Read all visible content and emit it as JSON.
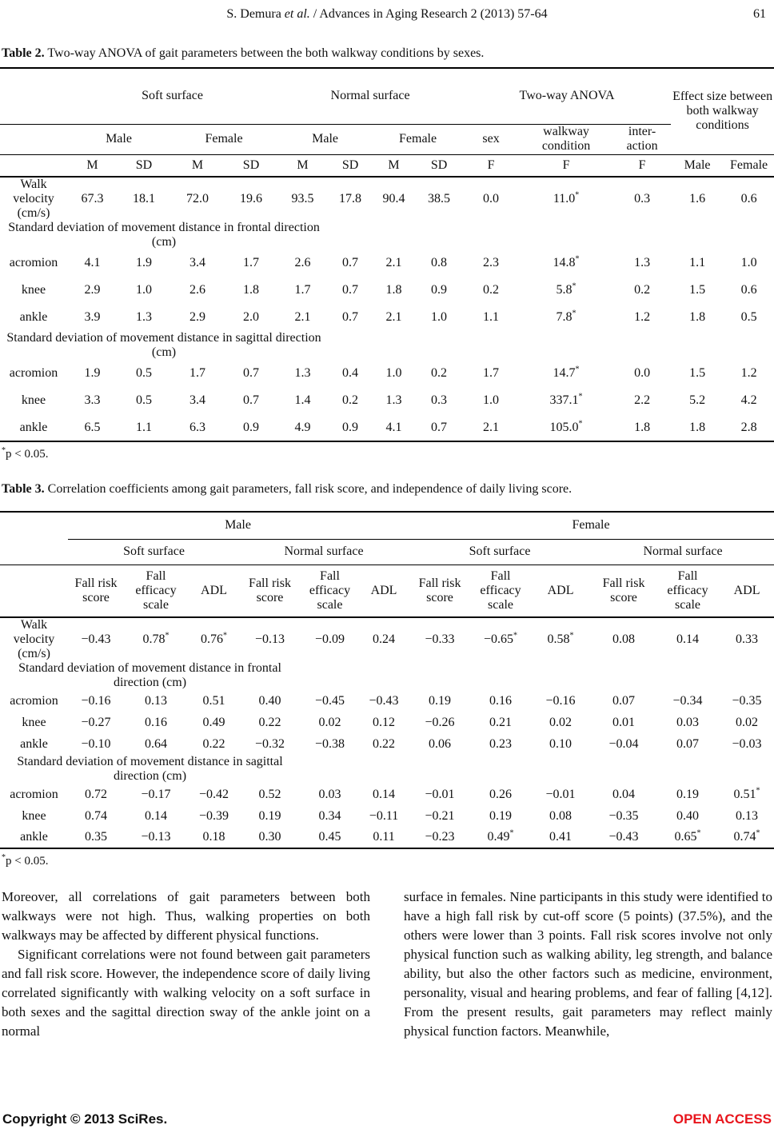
{
  "colors": {
    "open_access": "#e8151c",
    "text": "#111111"
  },
  "running_head": {
    "pre": "S. Demura ",
    "italic": "et al.",
    "post": " / Advances in Aging Research 2 (2013) 57-64",
    "page_number": "61"
  },
  "table2": {
    "caption_label": "Table 2.",
    "caption_text": "Two-way ANOVA of gait parameters between the both walkway conditions by sexes.",
    "groups": {
      "soft": "Soft surface",
      "normal": "Normal surface",
      "anova": "Two-way ANOVA",
      "effect": "Effect size between both walkway conditions"
    },
    "subheads": {
      "soft_male": "Male",
      "soft_female": "Female",
      "normal_male": "Male",
      "normal_female": "Female",
      "sex": "sex",
      "walkway": "walkway condition",
      "interaction": "inter-action"
    },
    "colheads": [
      "M",
      "SD",
      "M",
      "SD",
      "M",
      "SD",
      "M",
      "SD",
      "F",
      "F",
      "F",
      "Male",
      "Female"
    ],
    "rows": [
      {
        "label": "Walk velocity (cm/s)",
        "values": [
          "67.3",
          "18.1",
          "72.0",
          "19.6",
          "93.5",
          "17.8",
          "90.4",
          "38.5",
          "0.0",
          "11.0*",
          "0.3",
          "1.6",
          "0.6"
        ]
      },
      {
        "section": "Standard deviation of movement distance in frontal direction (cm)"
      },
      {
        "label": "acromion",
        "values": [
          "4.1",
          "1.9",
          "3.4",
          "1.7",
          "2.6",
          "0.7",
          "2.1",
          "0.8",
          "2.3",
          "14.8*",
          "1.3",
          "1.1",
          "1.0"
        ]
      },
      {
        "label": "knee",
        "values": [
          "2.9",
          "1.0",
          "2.6",
          "1.8",
          "1.7",
          "0.7",
          "1.8",
          "0.9",
          "0.2",
          "5.8*",
          "0.2",
          "1.5",
          "0.6"
        ]
      },
      {
        "label": "ankle",
        "values": [
          "3.9",
          "1.3",
          "2.9",
          "2.0",
          "2.1",
          "0.7",
          "2.1",
          "1.0",
          "1.1",
          "7.8*",
          "1.2",
          "1.8",
          "0.5"
        ]
      },
      {
        "section": "Standard deviation of movement distance in sagittal direction (cm)"
      },
      {
        "label": "acromion",
        "values": [
          "1.9",
          "0.5",
          "1.7",
          "0.7",
          "1.3",
          "0.4",
          "1.0",
          "0.2",
          "1.7",
          "14.7*",
          "0.0",
          "1.5",
          "1.2"
        ]
      },
      {
        "label": "knee",
        "values": [
          "3.3",
          "0.5",
          "3.4",
          "0.7",
          "1.4",
          "0.2",
          "1.3",
          "0.3",
          "1.0",
          "337.1*",
          "2.2",
          "5.2",
          "4.2"
        ]
      },
      {
        "label": "ankle",
        "values": [
          "6.5",
          "1.1",
          "6.3",
          "0.9",
          "4.9",
          "0.9",
          "4.1",
          "0.7",
          "2.1",
          "105.0*",
          "1.8",
          "1.8",
          "2.8"
        ]
      }
    ],
    "footnote_marker": "*",
    "footnote_text": "p < 0.05."
  },
  "table3": {
    "caption_label": "Table 3.",
    "caption_text": "Correlation coefficients among gait parameters, fall risk score, and independence of daily living score.",
    "groups": {
      "male": "Male",
      "female": "Female"
    },
    "surfaces": [
      "Soft surface",
      "Normal surface",
      "Soft surface",
      "Normal surface"
    ],
    "colheads": [
      "Fall risk score",
      "Fall efficacy scale",
      "ADL",
      "Fall risk score",
      "Fall efficacy scale",
      "ADL",
      "Fall risk score",
      "Fall efficacy scale",
      "ADL",
      "Fall risk score",
      "Fall efficacy scale",
      "ADL"
    ],
    "rows": [
      {
        "label": "Walk velocity (cm/s)",
        "values": [
          "−0.43",
          "0.78*",
          "0.76*",
          "−0.13",
          "−0.09",
          "0.24",
          "−0.33",
          "−0.65*",
          "0.58*",
          "0.08",
          "0.14",
          "0.33"
        ]
      },
      {
        "section": "Standard deviation of movement distance in frontal direction (cm)"
      },
      {
        "label": "acromion",
        "values": [
          "−0.16",
          "0.13",
          "0.51",
          "0.40",
          "−0.45",
          "−0.43",
          "0.19",
          "0.16",
          "−0.16",
          "0.07",
          "−0.34",
          "−0.35"
        ]
      },
      {
        "label": "knee",
        "values": [
          "−0.27",
          "0.16",
          "0.49",
          "0.22",
          "0.02",
          "0.12",
          "−0.26",
          "0.21",
          "0.02",
          "0.01",
          "0.03",
          "0.02"
        ]
      },
      {
        "label": "ankle",
        "values": [
          "−0.10",
          "0.64",
          "0.22",
          "−0.32",
          "−0.38",
          "0.22",
          "0.06",
          "0.23",
          "0.10",
          "−0.04",
          "0.07",
          "−0.03"
        ]
      },
      {
        "section": "Standard deviation of movement distance in sagittal direction (cm)"
      },
      {
        "label": "acromion",
        "values": [
          "0.72",
          "−0.17",
          "−0.42",
          "0.52",
          "0.03",
          "0.14",
          "−0.01",
          "0.26",
          "−0.01",
          "0.04",
          "0.19",
          "0.51*"
        ]
      },
      {
        "label": "knee",
        "values": [
          "0.74",
          "0.14",
          "−0.39",
          "0.19",
          "0.34",
          "−0.11",
          "−0.21",
          "0.19",
          "0.08",
          "−0.35",
          "0.40",
          "0.13"
        ]
      },
      {
        "label": "ankle",
        "values": [
          "0.35",
          "−0.13",
          "0.18",
          "0.30",
          "0.45",
          "0.11",
          "−0.23",
          "0.49*",
          "0.41",
          "−0.43",
          "0.65*",
          "0.74*"
        ]
      }
    ],
    "footnote_marker": "*",
    "footnote_text": "p < 0.05."
  },
  "body_text": {
    "left": [
      "Moreover, all correlations of gait parameters between both walkways were not high. Thus, walking properties on both walkways may be affected by different physical functions.",
      "Significant correlations were not found between gait parameters and fall risk score. However, the independence score of daily living correlated significantly with walking velocity on a soft surface in both sexes and the sagittal direction sway of the ankle joint on a normal"
    ],
    "right": [
      "surface in females. Nine participants in this study were identified to have a high fall risk by cut-off score (5 points) (37.5%), and the others were lower than 3 points. Fall risk scores involve not only physical function such as walking ability, leg strength, and balance ability, but also the other factors such as medicine, environment, personality, visual and hearing problems, and fear of falling [4,12]. From the present results, gait parameters may reflect mainly physical function factors. Meanwhile,"
    ]
  },
  "footer": {
    "copyright": "Copyright © 2013 SciRes.",
    "open_access": "OPEN ACCESS"
  }
}
